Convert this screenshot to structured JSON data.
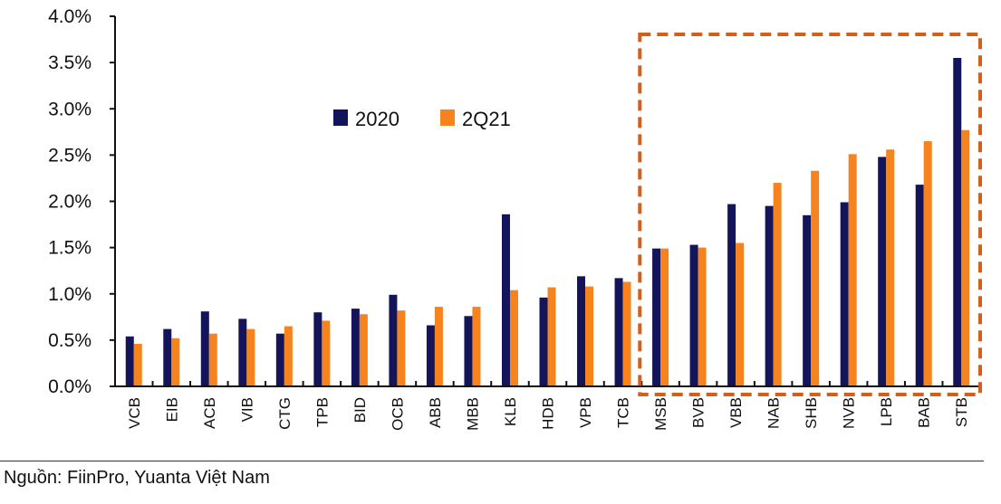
{
  "chart_data": {
    "type": "bar",
    "categories": [
      "VCB",
      "EIB",
      "ACB",
      "VIB",
      "CTG",
      "TPB",
      "BID",
      "OCB",
      "ABB",
      "MBB",
      "KLB",
      "HDB",
      "VPB",
      "TCB",
      "MSB",
      "BVB",
      "VBB",
      "NAB",
      "SHB",
      "NVB",
      "LPB",
      "BAB",
      "STB"
    ],
    "series": [
      {
        "name": "2020",
        "color": "#14145a",
        "values": [
          0.54,
          0.62,
          0.81,
          0.73,
          0.57,
          0.8,
          0.84,
          0.99,
          0.66,
          0.76,
          1.86,
          0.96,
          1.19,
          1.17,
          1.49,
          1.53,
          1.97,
          1.95,
          1.85,
          1.99,
          2.48,
          2.18,
          3.55
        ]
      },
      {
        "name": "2Q21",
        "color": "#f7831f",
        "values": [
          0.46,
          0.52,
          0.57,
          0.62,
          0.65,
          0.71,
          0.78,
          0.82,
          0.86,
          0.86,
          1.04,
          1.07,
          1.08,
          1.13,
          1.49,
          1.5,
          1.55,
          2.2,
          2.33,
          2.51,
          2.56,
          2.65,
          2.77
        ]
      }
    ],
    "yticks": [
      "0.0%",
      "0.5%",
      "1.0%",
      "1.5%",
      "2.0%",
      "2.5%",
      "3.0%",
      "3.5%",
      "4.0%"
    ],
    "ylim": [
      0,
      4.0
    ],
    "grid": false,
    "legend": "top-left",
    "highlight_box": {
      "from": "MSB",
      "to": "STB",
      "color": "#d2601a",
      "style": "dashed"
    }
  },
  "source": "Nguồn: FiinPro, Yuanta Việt Nam"
}
